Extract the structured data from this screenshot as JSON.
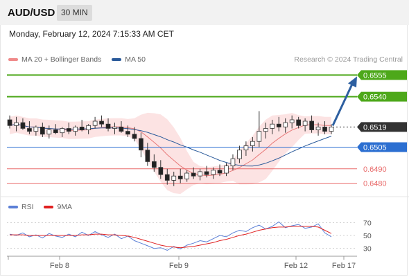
{
  "header": {
    "symbol": "AUD/USD",
    "timeframe": "30 MIN"
  },
  "datetime": "Monday, February 12, 2024 7:15:33 AM CET",
  "legend": {
    "items": [
      {
        "label": "MA 20 + Bollinger Bands",
        "color": "#f08a8a"
      },
      {
        "label": "MA 50",
        "color": "#2a5a9a"
      }
    ],
    "credit": "Research © 2024 Trading Central"
  },
  "rsi_legend": {
    "items": [
      {
        "label": "RSI",
        "color": "#5b7fd6"
      },
      {
        "label": "9MA",
        "color": "#e02020"
      }
    ]
  },
  "colors": {
    "up": "#ffffff",
    "down": "#222222",
    "green_level": "#4da81a",
    "blue_level": "#2c6fd1",
    "red_level": "#e86a6a",
    "current_box": "#333333",
    "arrow": "#2d5fa0",
    "band_fill": "#fbdada"
  },
  "chart_data": {
    "type": "candlestick",
    "ylim": [
      0.6475,
      0.656
    ],
    "levels": [
      {
        "label": "0.6555",
        "value": 0.6555,
        "kind": "resistance"
      },
      {
        "label": "0.6540",
        "value": 0.654,
        "kind": "resistance"
      },
      {
        "label": "0.6519",
        "value": 0.6519,
        "kind": "current"
      },
      {
        "label": "0.6505",
        "value": 0.6505,
        "kind": "pivot"
      },
      {
        "label": "0.6490",
        "value": 0.649,
        "kind": "support"
      },
      {
        "label": "0.6480",
        "value": 0.648,
        "kind": "support"
      }
    ],
    "x_ticks": [
      "Feb 8",
      "Feb 9",
      "Feb 12",
      "Feb 17"
    ],
    "candles": [
      [
        0.6524,
        0.6527,
        0.6518,
        0.652
      ],
      [
        0.652,
        0.6526,
        0.6516,
        0.6522
      ],
      [
        0.6522,
        0.6525,
        0.6517,
        0.6518
      ],
      [
        0.6518,
        0.6523,
        0.6514,
        0.6516
      ],
      [
        0.6516,
        0.652,
        0.6513,
        0.6519
      ],
      [
        0.6519,
        0.6522,
        0.6512,
        0.6514
      ],
      [
        0.6514,
        0.652,
        0.6511,
        0.6517
      ],
      [
        0.6517,
        0.6521,
        0.6514,
        0.6515
      ],
      [
        0.6515,
        0.6519,
        0.6512,
        0.6518
      ],
      [
        0.6518,
        0.6522,
        0.6514,
        0.6516
      ],
      [
        0.6516,
        0.652,
        0.6513,
        0.6519
      ],
      [
        0.6519,
        0.6524,
        0.6516,
        0.6517
      ],
      [
        0.6517,
        0.6521,
        0.6514,
        0.652
      ],
      [
        0.652,
        0.6526,
        0.6518,
        0.6523
      ],
      [
        0.6523,
        0.6527,
        0.6519,
        0.6521
      ],
      [
        0.6521,
        0.6525,
        0.6516,
        0.6518
      ],
      [
        0.6518,
        0.6522,
        0.6514,
        0.6519
      ],
      [
        0.6519,
        0.6523,
        0.6515,
        0.6516
      ],
      [
        0.6516,
        0.652,
        0.6512,
        0.6514
      ],
      [
        0.6514,
        0.6519,
        0.6509,
        0.6511
      ],
      [
        0.6511,
        0.6515,
        0.6498,
        0.6503
      ],
      [
        0.6503,
        0.6508,
        0.6492,
        0.6495
      ],
      [
        0.6495,
        0.65,
        0.6488,
        0.6491
      ],
      [
        0.6491,
        0.6496,
        0.6483,
        0.6486
      ],
      [
        0.6486,
        0.649,
        0.6479,
        0.6482
      ],
      [
        0.6482,
        0.6488,
        0.6478,
        0.6485
      ],
      [
        0.6485,
        0.649,
        0.648,
        0.6483
      ],
      [
        0.6483,
        0.6489,
        0.6481,
        0.6487
      ],
      [
        0.6487,
        0.6491,
        0.6483,
        0.6485
      ],
      [
        0.6485,
        0.649,
        0.6482,
        0.6488
      ],
      [
        0.6488,
        0.6492,
        0.6484,
        0.6486
      ],
      [
        0.6486,
        0.6491,
        0.6483,
        0.6489
      ],
      [
        0.6489,
        0.6493,
        0.6485,
        0.6487
      ],
      [
        0.6487,
        0.6494,
        0.6485,
        0.6492
      ],
      [
        0.6492,
        0.65,
        0.6489,
        0.6497
      ],
      [
        0.6497,
        0.6506,
        0.6494,
        0.6503
      ],
      [
        0.6503,
        0.6509,
        0.6499,
        0.6506
      ],
      [
        0.6506,
        0.6512,
        0.6502,
        0.6509
      ],
      [
        0.6509,
        0.653,
        0.6505,
        0.6516
      ],
      [
        0.6516,
        0.6522,
        0.6511,
        0.6518
      ],
      [
        0.6518,
        0.6524,
        0.6514,
        0.6521
      ],
      [
        0.6521,
        0.6526,
        0.6516,
        0.6519
      ],
      [
        0.6519,
        0.6525,
        0.6515,
        0.6522
      ],
      [
        0.6522,
        0.6527,
        0.6518,
        0.6524
      ],
      [
        0.6524,
        0.6526,
        0.6518,
        0.652
      ],
      [
        0.652,
        0.6525,
        0.6516,
        0.6523
      ],
      [
        0.6523,
        0.6527,
        0.6515,
        0.6517
      ],
      [
        0.6517,
        0.6522,
        0.6513,
        0.6519
      ],
      [
        0.6519,
        0.6523,
        0.6514,
        0.6516
      ],
      [
        0.6516,
        0.6521,
        0.6514,
        0.6519
      ]
    ],
    "rsi": {
      "ylim": [
        20,
        80
      ],
      "ticks": [
        "70",
        "50",
        "30"
      ],
      "rsi_values": [
        52,
        50,
        54,
        48,
        51,
        46,
        53,
        49,
        47,
        52,
        48,
        55,
        50,
        56,
        51,
        47,
        52,
        45,
        49,
        42,
        38,
        34,
        30,
        31,
        27,
        33,
        29,
        35,
        38,
        42,
        40,
        45,
        50,
        48,
        54,
        58,
        56,
        62,
        66,
        60,
        64,
        71,
        62,
        65,
        67,
        61,
        63,
        68,
        54,
        48
      ],
      "ma_values": [
        51,
        51,
        51,
        50,
        50,
        50,
        50,
        50,
        50,
        50,
        50,
        51,
        51,
        52,
        52,
        51,
        51,
        50,
        49,
        47,
        44,
        41,
        38,
        35,
        33,
        32,
        31,
        32,
        33,
        35,
        37,
        39,
        42,
        44,
        47,
        50,
        52,
        55,
        58,
        60,
        62,
        63,
        63,
        64,
        64,
        64,
        64,
        63,
        58,
        53
      ]
    }
  }
}
